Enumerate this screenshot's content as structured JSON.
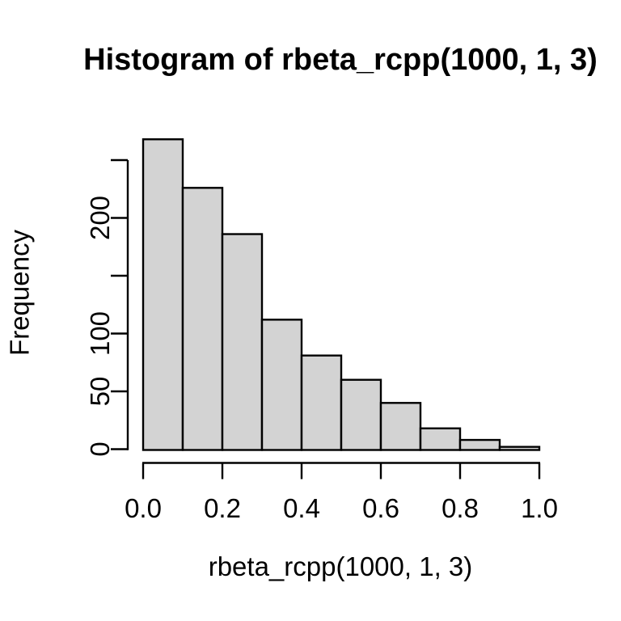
{
  "chart_data": {
    "type": "bar",
    "subtype": "histogram",
    "title": "Histogram of rbeta_rcpp(1000, 1, 3)",
    "xlabel": "rbeta_rcpp(1000, 1, 3)",
    "ylabel": "Frequency",
    "bin_edges": [
      0.0,
      0.1,
      0.2,
      0.3,
      0.4,
      0.5,
      0.6,
      0.7,
      0.8,
      0.9,
      1.0
    ],
    "frequencies": [
      268,
      226,
      186,
      112,
      81,
      60,
      40,
      18,
      8,
      2
    ],
    "xlim": [
      0.0,
      1.0
    ],
    "ylim": [
      0,
      250
    ],
    "x_ticks": [
      {
        "value": 0.0,
        "label": "0.0"
      },
      {
        "value": 0.2,
        "label": "0.2"
      },
      {
        "value": 0.4,
        "label": "0.4"
      },
      {
        "value": 0.6,
        "label": "0.6"
      },
      {
        "value": 0.8,
        "label": "0.8"
      },
      {
        "value": 1.0,
        "label": "1.0"
      }
    ],
    "y_ticks": [
      {
        "value": 0,
        "label": "0"
      },
      {
        "value": 50,
        "label": "50"
      },
      {
        "value": 100,
        "label": "100"
      },
      {
        "value": 150,
        "label": ""
      },
      {
        "value": 200,
        "label": "200"
      },
      {
        "value": 250,
        "label": ""
      }
    ],
    "grid": false,
    "legend": false,
    "colors": {
      "background": "#ffffff",
      "bar_fill": "#d3d3d3",
      "bar_stroke": "#000000",
      "axis": "#000000",
      "text": "#000000"
    }
  }
}
